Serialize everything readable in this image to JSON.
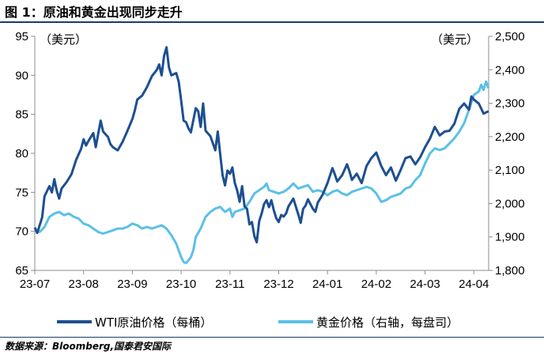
{
  "title": "图 1：原油和黄金出现同步走升",
  "source": "数据来源：Bloomberg,国泰君安国际",
  "colors": {
    "wti": "#1d4f91",
    "gold": "#5bc0e6",
    "axis": "#8c8c8c",
    "title_rule": "#1d3b6a"
  },
  "chart_data": {
    "type": "line",
    "left_axis": {
      "unit_label": "（美元）",
      "ticks": [
        95,
        90,
        85,
        80,
        75,
        70,
        65
      ],
      "range": [
        65,
        95
      ]
    },
    "right_axis": {
      "unit_label": "（美元）",
      "ticks": [
        "2,500",
        "2,400",
        "2,300",
        "2,200",
        "2,100",
        "2,000",
        "1,900",
        "1,800"
      ],
      "range": [
        1800,
        2500
      ]
    },
    "x_axis": {
      "ticks": [
        "23-07",
        "23-08",
        "23-09",
        "23-10",
        "23-11",
        "23-12",
        "24-01",
        "24-02",
        "24-03",
        "24-04"
      ]
    },
    "legend": [
      {
        "name": "WTI原油价格（每桶）"
      },
      {
        "name": "黄金价格（右轴，每盘司）"
      }
    ],
    "series": [
      {
        "name": "WTI原油价格（每桶）",
        "axis": "left",
        "points": [
          [
            0,
            70.5
          ],
          [
            0.05,
            69.8
          ],
          [
            0.1,
            70.8
          ],
          [
            0.15,
            71.8
          ],
          [
            0.2,
            74.5
          ],
          [
            0.3,
            75.8
          ],
          [
            0.35,
            75
          ],
          [
            0.4,
            76.7
          ],
          [
            0.45,
            75.2
          ],
          [
            0.5,
            74.2
          ],
          [
            0.55,
            75.5
          ],
          [
            0.65,
            76.3
          ],
          [
            0.75,
            77.3
          ],
          [
            0.85,
            79.2
          ],
          [
            0.95,
            80.6
          ],
          [
            1.0,
            81.8
          ],
          [
            1.05,
            81
          ],
          [
            1.1,
            81.6
          ],
          [
            1.2,
            82.6
          ],
          [
            1.25,
            80.8
          ],
          [
            1.3,
            82.5
          ],
          [
            1.35,
            84.2
          ],
          [
            1.4,
            82.8
          ],
          [
            1.5,
            82.1
          ],
          [
            1.55,
            81.2
          ],
          [
            1.6,
            80.8
          ],
          [
            1.7,
            80.4
          ],
          [
            1.8,
            81.5
          ],
          [
            1.9,
            82.9
          ],
          [
            2.0,
            84.4
          ],
          [
            2.05,
            85.5
          ],
          [
            2.1,
            86.9
          ],
          [
            2.2,
            87.4
          ],
          [
            2.3,
            88.5
          ],
          [
            2.4,
            89.9
          ],
          [
            2.5,
            90.7
          ],
          [
            2.55,
            91.4
          ],
          [
            2.6,
            90
          ],
          [
            2.65,
            92.5
          ],
          [
            2.7,
            93.6
          ],
          [
            2.75,
            91
          ],
          [
            2.8,
            90
          ],
          [
            2.9,
            90.3
          ],
          [
            2.95,
            89.2
          ],
          [
            3.0,
            86.8
          ],
          [
            3.05,
            84.2
          ],
          [
            3.1,
            84
          ],
          [
            3.15,
            83.2
          ],
          [
            3.2,
            82.7
          ],
          [
            3.3,
            85.8
          ],
          [
            3.35,
            85.4
          ],
          [
            3.4,
            83.4
          ],
          [
            3.45,
            86.4
          ],
          [
            3.5,
            82.9
          ],
          [
            3.6,
            82.2
          ],
          [
            3.7,
            80.4
          ],
          [
            3.75,
            82.8
          ],
          [
            3.8,
            79.9
          ],
          [
            3.85,
            77.2
          ],
          [
            3.9,
            75.9
          ],
          [
            3.95,
            77.8
          ],
          [
            4.0,
            77.4
          ],
          [
            4.05,
            78.2
          ],
          [
            4.1,
            76.2
          ],
          [
            4.15,
            75.2
          ],
          [
            4.2,
            73.8
          ],
          [
            4.25,
            75.8
          ],
          [
            4.3,
            73.2
          ],
          [
            4.35,
            72.9
          ],
          [
            4.4,
            70.9
          ],
          [
            4.45,
            71.2
          ],
          [
            4.5,
            69.4
          ],
          [
            4.55,
            68.6
          ],
          [
            4.6,
            71.3
          ],
          [
            4.65,
            72.3
          ],
          [
            4.7,
            73.5
          ],
          [
            4.75,
            74
          ],
          [
            4.8,
            73.1
          ],
          [
            4.85,
            74
          ],
          [
            4.9,
            72.7
          ],
          [
            4.95,
            71.7
          ],
          [
            5.0,
            71.2
          ],
          [
            5.05,
            72.1
          ],
          [
            5.1,
            71.9
          ],
          [
            5.15,
            72.3
          ],
          [
            5.2,
            73.2
          ],
          [
            5.3,
            74.2
          ],
          [
            5.4,
            72.2
          ],
          [
            5.45,
            71.1
          ],
          [
            5.5,
            72.9
          ],
          [
            5.55,
            73.3
          ],
          [
            5.6,
            74.1
          ],
          [
            5.7,
            72.9
          ],
          [
            5.75,
            72.5
          ],
          [
            5.8,
            73.7
          ],
          [
            5.9,
            74.7
          ],
          [
            6.0,
            76.2
          ],
          [
            6.1,
            78.1
          ],
          [
            6.15,
            77.3
          ],
          [
            6.2,
            76.4
          ],
          [
            6.3,
            77.2
          ],
          [
            6.4,
            78.6
          ],
          [
            6.45,
            77.7
          ],
          [
            6.5,
            76.6
          ],
          [
            6.6,
            77.4
          ],
          [
            6.7,
            76.2
          ],
          [
            6.8,
            78.4
          ],
          [
            6.9,
            79.4
          ],
          [
            7.0,
            80.1
          ],
          [
            7.1,
            78.4
          ],
          [
            7.2,
            77.2
          ],
          [
            7.3,
            78.2
          ],
          [
            7.4,
            76.5
          ],
          [
            7.5,
            77.9
          ],
          [
            7.6,
            79.4
          ],
          [
            7.7,
            79.6
          ],
          [
            7.8,
            78.6
          ],
          [
            7.9,
            79.5
          ],
          [
            8.0,
            80.8
          ],
          [
            8.1,
            81.9
          ],
          [
            8.2,
            83.4
          ],
          [
            8.3,
            82.3
          ],
          [
            8.4,
            82.8
          ],
          [
            8.5,
            82.9
          ],
          [
            8.6,
            83.8
          ],
          [
            8.7,
            85.7
          ],
          [
            8.8,
            86.4
          ],
          [
            8.9,
            85.6
          ],
          [
            8.95,
            87.3
          ],
          [
            9.0,
            86.9
          ],
          [
            9.1,
            86.4
          ],
          [
            9.2,
            85.1
          ],
          [
            9.3,
            85.4
          ]
        ]
      },
      {
        "name": "黄金价格（右轴，每盘司）",
        "axis": "right",
        "points": [
          [
            0,
            1920
          ],
          [
            0.1,
            1915
          ],
          [
            0.2,
            1930
          ],
          [
            0.3,
            1960
          ],
          [
            0.4,
            1970
          ],
          [
            0.5,
            1975
          ],
          [
            0.6,
            1965
          ],
          [
            0.7,
            1970
          ],
          [
            0.8,
            1960
          ],
          [
            0.9,
            1955
          ],
          [
            1.0,
            1940
          ],
          [
            1.1,
            1935
          ],
          [
            1.2,
            1925
          ],
          [
            1.3,
            1915
          ],
          [
            1.4,
            1910
          ],
          [
            1.5,
            1915
          ],
          [
            1.6,
            1920
          ],
          [
            1.7,
            1925
          ],
          [
            1.8,
            1925
          ],
          [
            1.9,
            1930
          ],
          [
            2.0,
            1940
          ],
          [
            2.1,
            1935
          ],
          [
            2.2,
            1925
          ],
          [
            2.3,
            1930
          ],
          [
            2.4,
            1925
          ],
          [
            2.5,
            1930
          ],
          [
            2.6,
            1935
          ],
          [
            2.7,
            1925
          ],
          [
            2.8,
            1905
          ],
          [
            2.9,
            1880
          ],
          [
            2.95,
            1860
          ],
          [
            3.0,
            1840
          ],
          [
            3.05,
            1825
          ],
          [
            3.1,
            1822
          ],
          [
            3.15,
            1830
          ],
          [
            3.2,
            1840
          ],
          [
            3.25,
            1860
          ],
          [
            3.3,
            1900
          ],
          [
            3.4,
            1925
          ],
          [
            3.5,
            1960
          ],
          [
            3.6,
            1975
          ],
          [
            3.7,
            1985
          ],
          [
            3.8,
            1990
          ],
          [
            3.9,
            1975
          ],
          [
            4.0,
            1985
          ],
          [
            4.05,
            1960
          ],
          [
            4.1,
            1975
          ],
          [
            4.2,
            1980
          ],
          [
            4.3,
            1985
          ],
          [
            4.4,
            2005
          ],
          [
            4.5,
            2030
          ],
          [
            4.6,
            2040
          ],
          [
            4.7,
            2050
          ],
          [
            4.75,
            2060
          ],
          [
            4.8,
            2040
          ],
          [
            4.9,
            2035
          ],
          [
            5.0,
            2030
          ],
          [
            5.1,
            2035
          ],
          [
            5.2,
            2045
          ],
          [
            5.3,
            2060
          ],
          [
            5.4,
            2045
          ],
          [
            5.5,
            2050
          ],
          [
            5.6,
            2055
          ],
          [
            5.7,
            2035
          ],
          [
            5.8,
            2040
          ],
          [
            5.9,
            2035
          ],
          [
            6.0,
            2025
          ],
          [
            6.1,
            2035
          ],
          [
            6.2,
            2040
          ],
          [
            6.3,
            2030
          ],
          [
            6.4,
            2025
          ],
          [
            6.5,
            2035
          ],
          [
            6.6,
            2040
          ],
          [
            6.7,
            2045
          ],
          [
            6.8,
            2050
          ],
          [
            6.9,
            2045
          ],
          [
            7.0,
            2030
          ],
          [
            7.1,
            2005
          ],
          [
            7.2,
            2010
          ],
          [
            7.3,
            2020
          ],
          [
            7.4,
            2025
          ],
          [
            7.5,
            2030
          ],
          [
            7.6,
            2045
          ],
          [
            7.7,
            2050
          ],
          [
            7.8,
            2070
          ],
          [
            7.9,
            2085
          ],
          [
            8.0,
            2120
          ],
          [
            8.1,
            2150
          ],
          [
            8.2,
            2165
          ],
          [
            8.3,
            2160
          ],
          [
            8.4,
            2165
          ],
          [
            8.5,
            2180
          ],
          [
            8.6,
            2195
          ],
          [
            8.7,
            2215
          ],
          [
            8.8,
            2240
          ],
          [
            8.9,
            2280
          ],
          [
            9.0,
            2325
          ],
          [
            9.1,
            2335
          ],
          [
            9.15,
            2355
          ],
          [
            9.2,
            2340
          ],
          [
            9.25,
            2365
          ],
          [
            9.3,
            2345
          ]
        ]
      }
    ]
  }
}
